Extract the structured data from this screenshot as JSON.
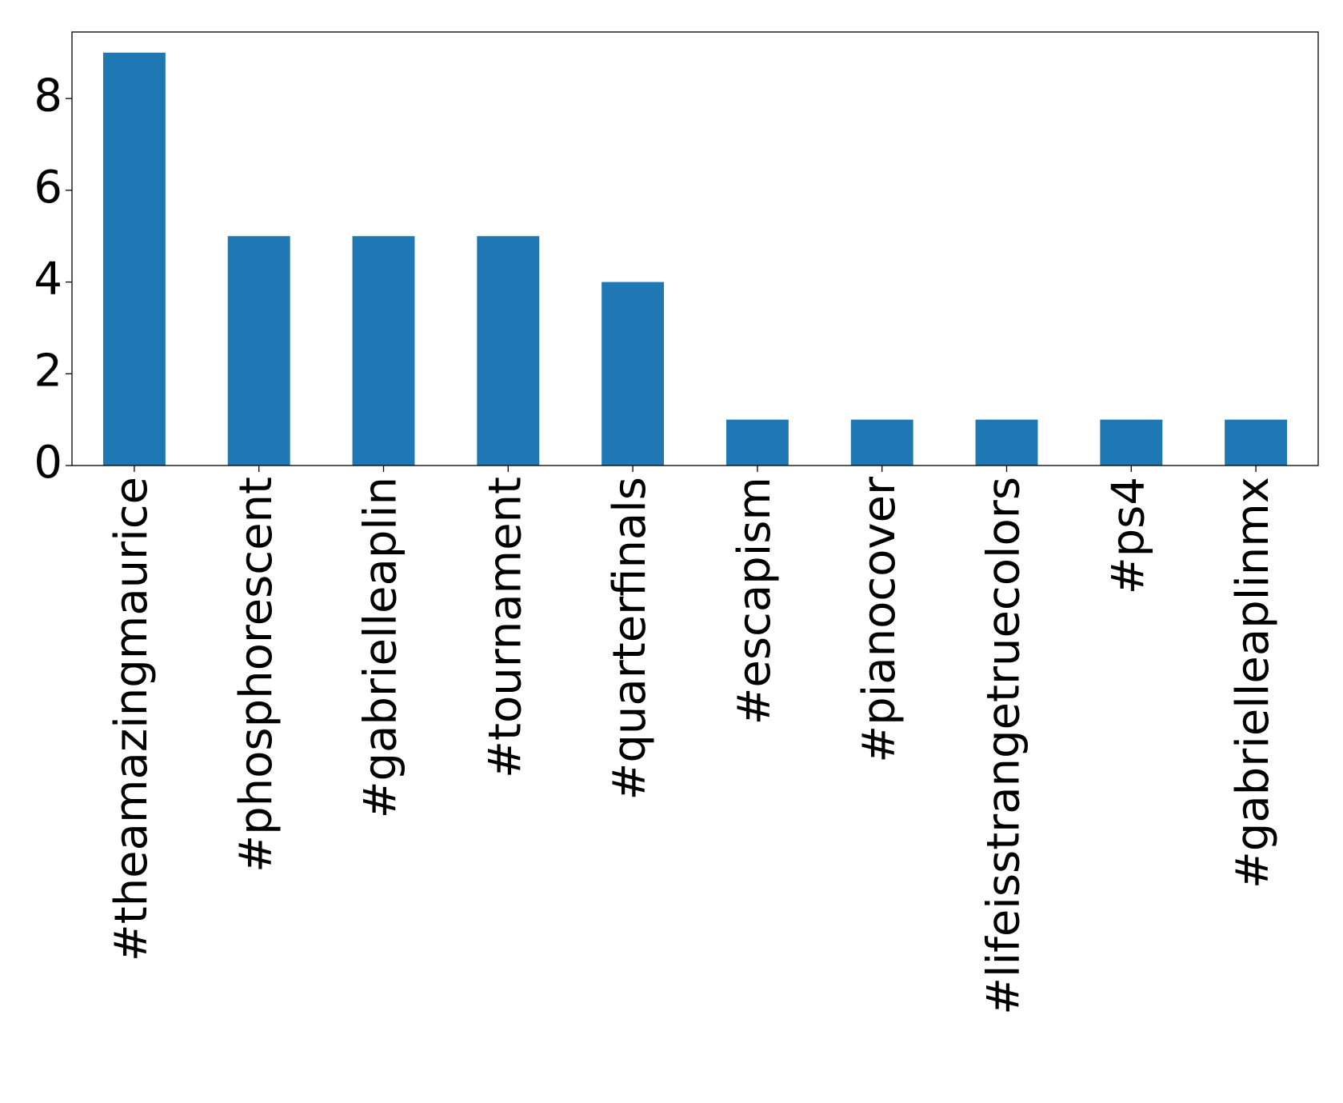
{
  "chart_data": {
    "type": "bar",
    "categories": [
      "#theamazingmaurice",
      "#phosphorescent",
      "#gabrielleaplin",
      "#tournament",
      "#quarterfinals",
      "#escapism",
      "#pianocover",
      "#lifeisstrangetruecolors",
      "#ps4",
      "#gabrielleaplinmx"
    ],
    "values": [
      9,
      5,
      5,
      5,
      4,
      1,
      1,
      1,
      1,
      1
    ],
    "yticks": [
      0,
      2,
      4,
      6,
      8
    ],
    "ylim": [
      0,
      9.45
    ],
    "title": "",
    "xlabel": "",
    "ylabel": "",
    "grid": false,
    "bar_color": "#1f77b4"
  }
}
